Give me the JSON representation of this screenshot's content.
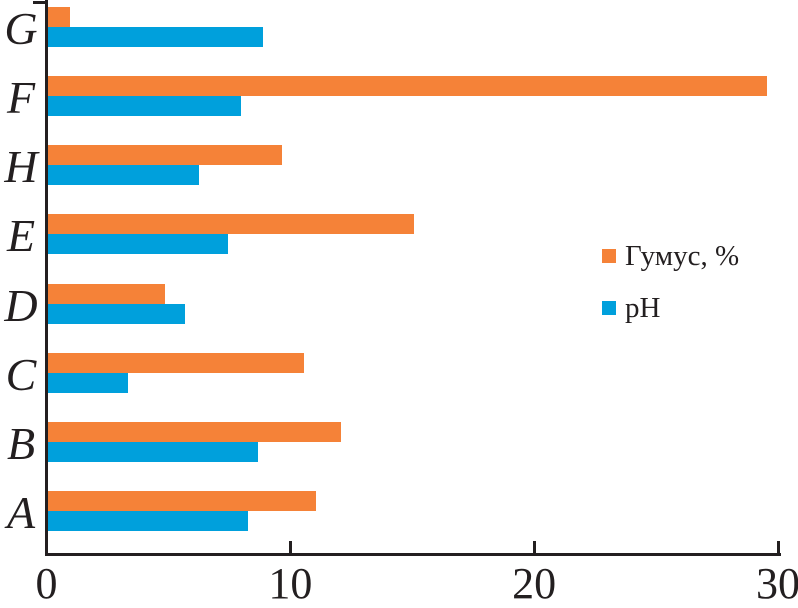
{
  "chart_data": {
    "type": "bar",
    "orientation": "horizontal",
    "title": "",
    "xlabel": "",
    "ylabel": "",
    "categories": [
      "G",
      "F",
      "H",
      "E",
      "D",
      "C",
      "B",
      "A"
    ],
    "series": [
      {
        "name": "Гумус, %",
        "color": "#F58238",
        "values": [
          0.9,
          29.5,
          9.6,
          15.0,
          4.8,
          10.5,
          12.0,
          11.0
        ]
      },
      {
        "name": "pH",
        "color": "#00A0DC",
        "values": [
          8.8,
          7.9,
          6.2,
          7.4,
          5.6,
          3.3,
          8.6,
          8.2
        ]
      }
    ],
    "xlim": [
      0,
      30
    ],
    "x_ticks": [
      0,
      10,
      20,
      30
    ],
    "grid": false,
    "legend_position": "right-middle"
  },
  "colors": {
    "axis": "#231f20",
    "humus": "#F58238",
    "ph": "#00A0DC",
    "background": "#ffffff"
  }
}
